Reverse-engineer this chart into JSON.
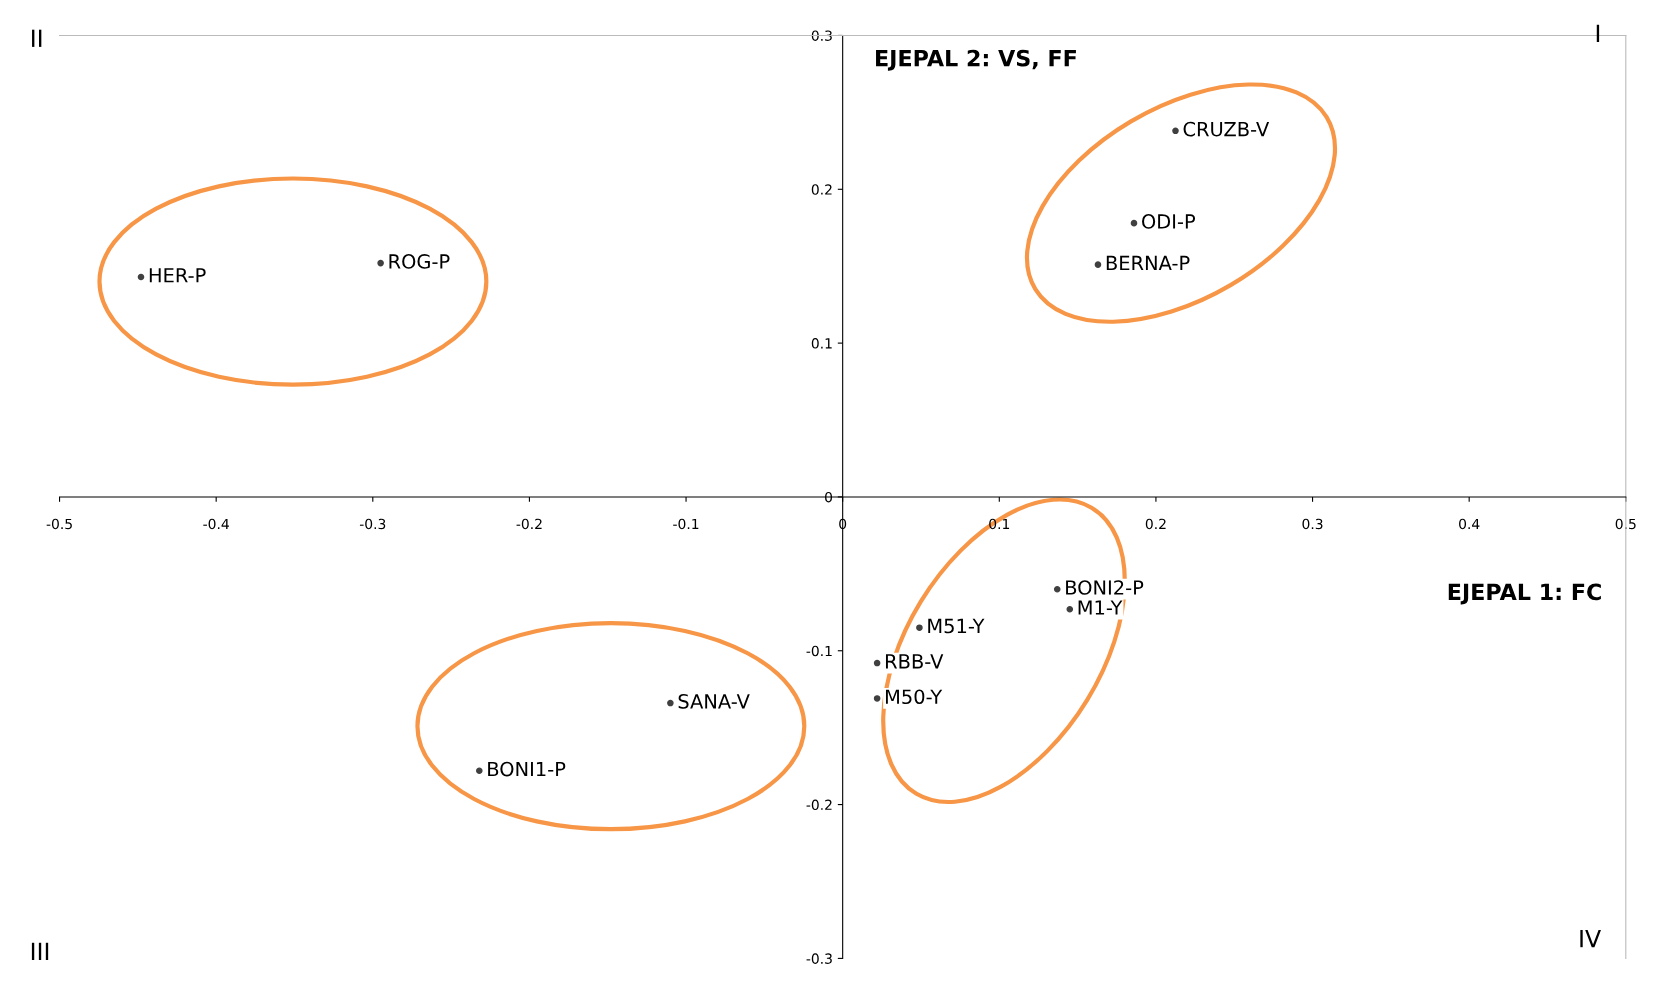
{
  "chart_data": {
    "type": "scatter",
    "xlabel": "EJEPAL 1: FC",
    "ylabel": "EJEPAL 2: VS, FF",
    "series": [
      {
        "color": "#404040",
        "marker": "circle",
        "x": [
          0.2125,
          0.186,
          0.163,
          -0.448,
          -0.295,
          0.137,
          0.145,
          0.049,
          0.022,
          0.022,
          -0.11,
          -0.232
        ],
        "values": [
          0.238,
          0.178,
          0.151,
          0.143,
          0.152,
          -0.06,
          -0.073,
          -0.085,
          -0.108,
          -0.131,
          -0.134,
          -0.178
        ]
      }
    ],
    "annotations": [
      {
        "text": "CRUZB-V",
        "x": 0.2125,
        "y": 0.238
      },
      {
        "text": "ODI-P",
        "x": 0.186,
        "y": 0.178
      },
      {
        "text": "BERNA-P",
        "x": 0.163,
        "y": 0.151
      },
      {
        "text": "HER-P",
        "x": -0.448,
        "y": 0.143
      },
      {
        "text": "ROG-P",
        "x": -0.295,
        "y": 0.152
      },
      {
        "text": "BONI2-P",
        "x": 0.137,
        "y": -0.06
      },
      {
        "text": "M1-Y",
        "x": 0.145,
        "y": -0.073
      },
      {
        "text": "M51-Y",
        "x": 0.049,
        "y": -0.085
      },
      {
        "text": "RBB-V",
        "x": 0.022,
        "y": -0.108
      },
      {
        "text": "M50-Y",
        "x": 0.022,
        "y": -0.131
      },
      {
        "text": "SANA-V",
        "x": -0.11,
        "y": -0.134
      },
      {
        "text": "BONI1-P",
        "x": -0.232,
        "y": -0.178
      },
      "I",
      "II",
      "III",
      "IV"
    ],
    "xlim": [
      -0.5,
      0.5
    ],
    "xticks": [
      -0.5,
      -0.4,
      -0.3,
      -0.2,
      -0.1,
      0,
      0.1,
      0.2,
      0.3,
      0.4,
      0.5
    ],
    "ylim": [
      -0.3,
      0.3
    ],
    "yticks": [
      -0.3,
      -0.2,
      -0.1,
      0,
      0.1,
      0.2,
      0.3
    ],
    "grid": false,
    "legend": false
  }
}
